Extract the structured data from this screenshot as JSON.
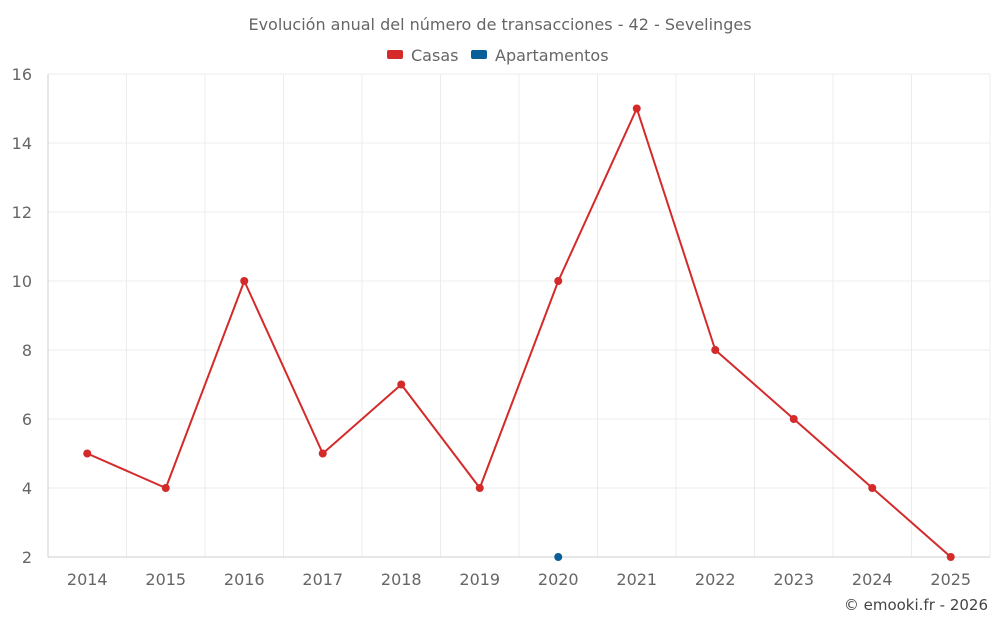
{
  "chart_data": {
    "type": "line",
    "title": "Evolución anual del número de transacciones - 42 - Sevelinges",
    "x": [
      "2014",
      "2015",
      "2016",
      "2017",
      "2018",
      "2019",
      "2020",
      "2021",
      "2022",
      "2023",
      "2024",
      "2025"
    ],
    "series": [
      {
        "name": "Casas",
        "color": "#d42a2a",
        "values": [
          5,
          4,
          10,
          5,
          7,
          4,
          10,
          15,
          8,
          6,
          4,
          2
        ]
      },
      {
        "name": "Apartamentos",
        "color": "#0a5f99",
        "values": [
          null,
          null,
          null,
          null,
          null,
          null,
          2,
          null,
          null,
          null,
          null,
          null
        ]
      }
    ],
    "ylim": [
      2,
      16
    ],
    "yticks": [
      2,
      4,
      6,
      8,
      10,
      12,
      14,
      16
    ],
    "grid": true,
    "legend_position": "top-center"
  },
  "credit": "© emooki.fr - 2026"
}
